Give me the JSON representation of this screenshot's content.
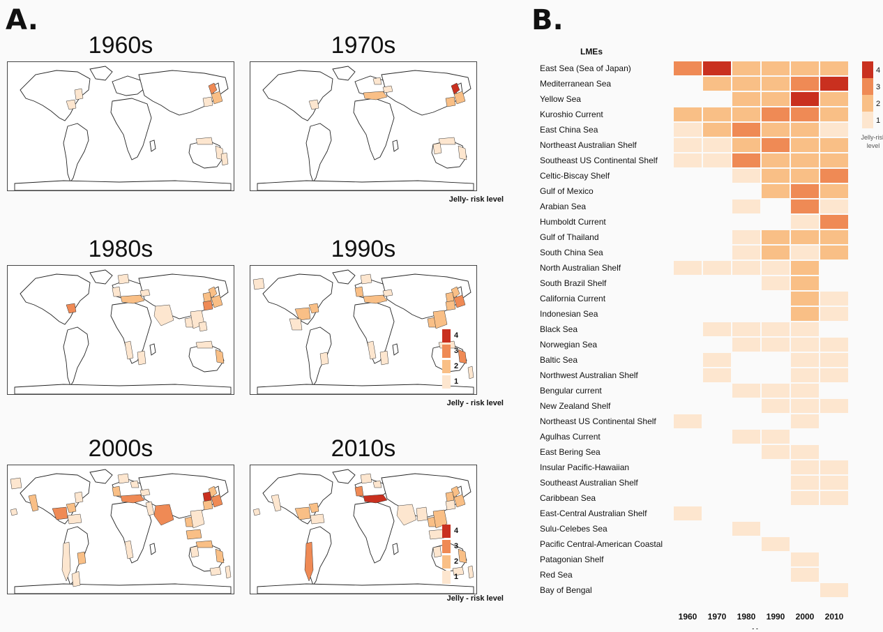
{
  "panel_a": {
    "label": "A.",
    "legend": {
      "ticks": [
        "4",
        "3",
        "2",
        "1"
      ],
      "title_compact": "Jelly- risk level",
      "title_spaced": "Jelly - risk level"
    },
    "maps": [
      {
        "decade": "1960s",
        "legend_title_key": "title_compact",
        "show_legend": true
      },
      {
        "decade": "1970s",
        "show_legend": false
      },
      {
        "decade": "1980s",
        "show_legend": false
      },
      {
        "decade": "1990s",
        "legend_title_key": "title_spaced",
        "show_legend": true
      },
      {
        "decade": "2000s",
        "show_legend": false
      },
      {
        "decade": "2010s",
        "legend_title_key": "title_spaced",
        "show_legend": true
      }
    ]
  },
  "panel_b": {
    "label": "B."
  },
  "colors": {
    "level1": "#fde6cf",
    "level2": "#f9bf86",
    "level3": "#ef8a55",
    "level4": "#c9301f",
    "none": "#ffffff",
    "land": "#ffffff",
    "coast": "#222222"
  },
  "chart_data": {
    "type": "heatmap",
    "title": "LMEs",
    "xlabel": "Year",
    "columns": [
      "1960",
      "1970",
      "1980",
      "1990",
      "2000",
      "2010"
    ],
    "legend_title": "Jelly-risk level",
    "legend_levels": [
      4,
      3,
      2,
      1
    ],
    "rows": [
      {
        "name": "East Sea (Sea of Japan)",
        "values": [
          3,
          4,
          2,
          2,
          2,
          2
        ]
      },
      {
        "name": "Mediterranean Sea",
        "values": [
          0,
          2,
          2,
          2,
          3,
          4
        ]
      },
      {
        "name": "Yellow Sea",
        "values": [
          0,
          0,
          2,
          2,
          4,
          2
        ]
      },
      {
        "name": "Kuroshio Current",
        "values": [
          2,
          2,
          2,
          3,
          3,
          2
        ]
      },
      {
        "name": "East China Sea",
        "values": [
          1,
          2,
          3,
          2,
          2,
          1
        ]
      },
      {
        "name": "Northeast Australian Shelf",
        "values": [
          1,
          1,
          2,
          3,
          2,
          2
        ]
      },
      {
        "name": "Southeast US Continental Shelf",
        "values": [
          1,
          1,
          3,
          2,
          2,
          2
        ]
      },
      {
        "name": "Celtic-Biscay Shelf",
        "values": [
          0,
          0,
          1,
          2,
          2,
          3
        ]
      },
      {
        "name": "Gulf of Mexico",
        "values": [
          0,
          0,
          0,
          2,
          3,
          2
        ]
      },
      {
        "name": "Arabian Sea",
        "values": [
          0,
          0,
          1,
          0,
          3,
          1
        ]
      },
      {
        "name": "Humboldt Current",
        "values": [
          0,
          0,
          0,
          0,
          1,
          3
        ]
      },
      {
        "name": "Gulf of Thailand",
        "values": [
          0,
          0,
          1,
          2,
          2,
          2
        ]
      },
      {
        "name": "South China Sea",
        "values": [
          0,
          0,
          1,
          2,
          1,
          2
        ]
      },
      {
        "name": "North Australian Shelf",
        "values": [
          1,
          1,
          1,
          1,
          2,
          0
        ]
      },
      {
        "name": "South Brazil Shelf",
        "values": [
          0,
          0,
          0,
          1,
          2,
          0
        ]
      },
      {
        "name": "California Current",
        "values": [
          0,
          0,
          0,
          0,
          2,
          1
        ]
      },
      {
        "name": "Indonesian Sea",
        "values": [
          0,
          0,
          0,
          0,
          2,
          1
        ]
      },
      {
        "name": "Black Sea",
        "values": [
          0,
          1,
          1,
          1,
          1,
          0
        ]
      },
      {
        "name": "Norwegian Sea",
        "values": [
          0,
          0,
          1,
          1,
          1,
          1
        ]
      },
      {
        "name": "Baltic Sea",
        "values": [
          0,
          1,
          0,
          0,
          1,
          1
        ]
      },
      {
        "name": "Northwest Australian Shelf",
        "values": [
          0,
          1,
          0,
          0,
          1,
          1
        ]
      },
      {
        "name": "Bengular current",
        "values": [
          0,
          0,
          1,
          1,
          1,
          0
        ]
      },
      {
        "name": "New Zealand Shelf",
        "values": [
          0,
          0,
          0,
          1,
          1,
          1
        ]
      },
      {
        "name": "Northeast US Continental Shelf",
        "values": [
          1,
          0,
          0,
          0,
          1,
          0
        ]
      },
      {
        "name": "Agulhas Current",
        "values": [
          0,
          0,
          1,
          1,
          0,
          0
        ]
      },
      {
        "name": "East Bering Sea",
        "values": [
          0,
          0,
          0,
          1,
          1,
          0
        ]
      },
      {
        "name": "Insular Pacific-Hawaiian",
        "values": [
          0,
          0,
          0,
          0,
          1,
          1
        ]
      },
      {
        "name": "Southeast Australian Shelf",
        "values": [
          0,
          0,
          0,
          0,
          1,
          1
        ]
      },
      {
        "name": "Caribbean Sea",
        "values": [
          0,
          0,
          0,
          0,
          1,
          1
        ]
      },
      {
        "name": "East-Central Australian Shelf",
        "values": [
          1,
          0,
          0,
          0,
          0,
          0
        ]
      },
      {
        "name": "Sulu-Celebes Sea",
        "values": [
          0,
          0,
          1,
          0,
          0,
          0
        ]
      },
      {
        "name": "Pacific Central-American Coastal",
        "values": [
          0,
          0,
          0,
          1,
          0,
          0
        ]
      },
      {
        "name": "Patagonian Shelf",
        "values": [
          0,
          0,
          0,
          0,
          1,
          0
        ]
      },
      {
        "name": "Red Sea",
        "values": [
          0,
          0,
          0,
          0,
          1,
          0
        ]
      },
      {
        "name": "Bay of Bengal",
        "values": [
          0,
          0,
          0,
          0,
          0,
          1
        ]
      }
    ]
  }
}
